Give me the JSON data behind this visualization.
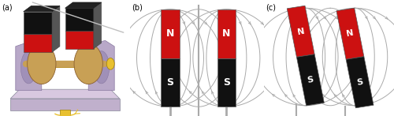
{
  "fig_width": 5.0,
  "fig_height": 1.47,
  "dpi": 100,
  "bg_color": "#ffffff",
  "panel_labels": [
    "(a)",
    "(b)",
    "(c)"
  ],
  "magnet_red": "#cc1111",
  "magnet_black": "#111111",
  "field_line_color": "#aaaaaa",
  "stand_color": "#aaaaaa",
  "wood_color": "#c8a055",
  "base_color": "#c8b8d8",
  "bracket_color": "#b8a8c8",
  "needle_color": "#bbbbbb",
  "yellow_color": "#e8c030",
  "white": "#ffffff"
}
